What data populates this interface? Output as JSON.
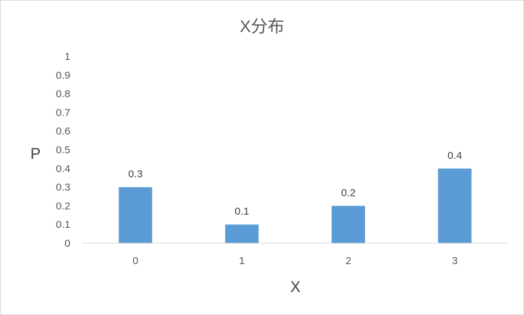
{
  "chart_data": {
    "type": "bar",
    "title": "X分布",
    "xlabel": "X",
    "ylabel": "P",
    "categories": [
      "0",
      "1",
      "2",
      "3"
    ],
    "values": [
      0.3,
      0.1,
      0.2,
      0.4
    ],
    "data_labels": [
      "0.3",
      "0.1",
      "0.2",
      "0.4"
    ],
    "ylim": [
      0,
      1
    ],
    "yticks": [
      "0",
      "0.1",
      "0.2",
      "0.3",
      "0.4",
      "0.5",
      "0.6",
      "0.7",
      "0.8",
      "0.9",
      "1"
    ],
    "grid": false,
    "legend": "none",
    "bar_color": "#5b9bd5"
  }
}
